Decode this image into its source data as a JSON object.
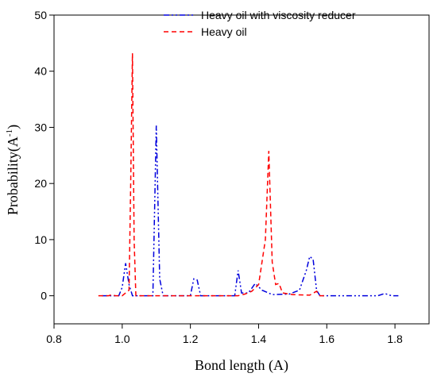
{
  "chart_data": {
    "type": "line",
    "xlabel": "Bond length (A)",
    "ylabel_main": "Probability(A",
    "ylabel_sup": "-1",
    "ylabel_close": ")",
    "xlim": [
      0.8,
      1.9
    ],
    "ylim": [
      -5,
      50
    ],
    "xticks": [
      0.8,
      1.0,
      1.2,
      1.4,
      1.6,
      1.8
    ],
    "xtick_labels": [
      "0.8",
      "1.0",
      "1.2",
      "1.4",
      "1.6",
      "1.8"
    ],
    "yticks": [
      0,
      10,
      20,
      30,
      40,
      50
    ],
    "ytick_labels": [
      "0",
      "10",
      "20",
      "30",
      "40",
      "50"
    ],
    "grid": false,
    "legend_position": "top-right",
    "series": [
      {
        "name": "Heavy oil with viscosity reducer",
        "color": "#0000dd",
        "dash": "dash-dot-dot",
        "points": [
          [
            0.94,
            0
          ],
          [
            0.99,
            0
          ],
          [
            1.0,
            1.5
          ],
          [
            1.01,
            5.8
          ],
          [
            1.02,
            2.0
          ],
          [
            1.03,
            0
          ],
          [
            1.09,
            0
          ],
          [
            1.1,
            30.3
          ],
          [
            1.11,
            3.0
          ],
          [
            1.12,
            0
          ],
          [
            1.2,
            0
          ],
          [
            1.21,
            3.0
          ],
          [
            1.22,
            2.8
          ],
          [
            1.23,
            0
          ],
          [
            1.33,
            0
          ],
          [
            1.34,
            4.5
          ],
          [
            1.35,
            0.5
          ],
          [
            1.37,
            0.5
          ],
          [
            1.39,
            2.2
          ],
          [
            1.41,
            1.0
          ],
          [
            1.44,
            0.2
          ],
          [
            1.49,
            0.3
          ],
          [
            1.52,
            1.0
          ],
          [
            1.54,
            4.5
          ],
          [
            1.55,
            7.0
          ],
          [
            1.56,
            6.5
          ],
          [
            1.57,
            1.0
          ],
          [
            1.58,
            0
          ],
          [
            1.75,
            0
          ],
          [
            1.77,
            0.4
          ],
          [
            1.79,
            0
          ],
          [
            1.81,
            0
          ]
        ]
      },
      {
        "name": "Heavy oil",
        "color": "#ff0000",
        "dash": "dashed",
        "points": [
          [
            0.93,
            0
          ],
          [
            0.96,
            0
          ],
          [
            0.97,
            0.2
          ],
          [
            0.98,
            0
          ],
          [
            1.0,
            0
          ],
          [
            1.02,
            1.0
          ],
          [
            1.025,
            20
          ],
          [
            1.03,
            43.2
          ],
          [
            1.035,
            10
          ],
          [
            1.04,
            0
          ],
          [
            1.1,
            0
          ],
          [
            1.25,
            0
          ],
          [
            1.34,
            0
          ],
          [
            1.36,
            0.3
          ],
          [
            1.38,
            0.8
          ],
          [
            1.4,
            2.0
          ],
          [
            1.42,
            10
          ],
          [
            1.43,
            25.8
          ],
          [
            1.44,
            6.0
          ],
          [
            1.45,
            2.0
          ],
          [
            1.46,
            2.2
          ],
          [
            1.47,
            0.5
          ],
          [
            1.5,
            0.2
          ],
          [
            1.55,
            0.1
          ],
          [
            1.57,
            0.8
          ],
          [
            1.58,
            0
          ],
          [
            1.6,
            0
          ]
        ]
      }
    ]
  }
}
